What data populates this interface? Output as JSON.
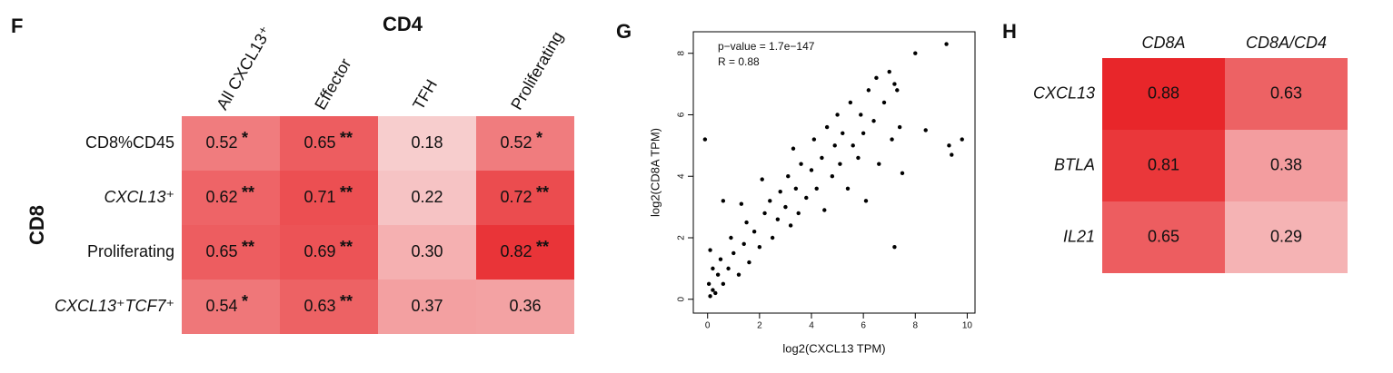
{
  "chart_data": [
    {
      "type": "heatmap",
      "panel": "F",
      "title": "CD4",
      "ylabel": "CD8",
      "columns": [
        "All CXCL13⁺",
        "Effector",
        "TFH",
        "Proliferating"
      ],
      "rows": [
        "CD8%CD45",
        "CXCL13⁺",
        "Proliferating",
        "CXCL13⁺TCF7⁺"
      ],
      "row_italic": [
        false,
        true,
        false,
        true
      ],
      "values": [
        [
          0.52,
          0.65,
          0.18,
          0.52
        ],
        [
          0.62,
          0.71,
          0.22,
          0.72
        ],
        [
          0.65,
          0.69,
          0.3,
          0.82
        ],
        [
          0.54,
          0.63,
          0.37,
          0.36
        ]
      ],
      "value_labels": [
        [
          "0.52",
          "0.65",
          "0.18",
          "0.52"
        ],
        [
          "0.62",
          "0.71",
          "0.22",
          "0.72"
        ],
        [
          "0.65",
          "0.69",
          "0.30",
          "0.82"
        ],
        [
          "0.54",
          "0.63",
          "0.37",
          "0.36"
        ]
      ],
      "stars": [
        [
          "*",
          "**",
          null,
          "*"
        ],
        [
          "**",
          "**",
          null,
          "**"
        ],
        [
          "**",
          "**",
          null,
          "**"
        ],
        [
          "*",
          "**",
          null,
          null
        ]
      ],
      "colors": [
        "#f9e0e0",
        "#e8262a"
      ],
      "color_range": [
        0.1,
        0.88
      ]
    },
    {
      "type": "scatter",
      "panel": "G",
      "xlabel": "log2(CXCL13 TPM)",
      "ylabel": "log2(CD8A TPM)",
      "annotations": [
        "p−value = 1.7e−147",
        "R = 0.88"
      ],
      "color": "#000000",
      "x": [
        0.1,
        0.2,
        0.05,
        0.3,
        0.4,
        0.2,
        0.6,
        0.5,
        0.8,
        0.1,
        1.0,
        1.2,
        0.9,
        1.4,
        1.6,
        1.5,
        1.8,
        2.0,
        2.2,
        2.5,
        2.4,
        2.7,
        2.8,
        3.0,
        3.2,
        3.1,
        3.4,
        3.5,
        3.6,
        3.8,
        4.0,
        4.1,
        4.2,
        4.4,
        4.5,
        4.6,
        4.8,
        4.9,
        5.0,
        5.1,
        5.2,
        5.4,
        5.5,
        5.6,
        5.8,
        5.9,
        6.0,
        6.1,
        6.2,
        6.4,
        6.5,
        6.6,
        6.8,
        7.0,
        7.1,
        7.2,
        7.3,
        7.4,
        7.5,
        7.2,
        8.0,
        8.4,
        9.2,
        9.3,
        9.8,
        9.4,
        -0.1,
        0.6,
        3.3,
        2.1,
        1.3
      ],
      "y": [
        0.1,
        0.3,
        0.5,
        0.2,
        0.8,
        1.0,
        0.5,
        1.3,
        1.0,
        1.6,
        1.5,
        0.8,
        2.0,
        1.8,
        1.2,
        2.5,
        2.2,
        1.7,
        2.8,
        2.0,
        3.2,
        2.6,
        3.5,
        3.0,
        2.4,
        4.0,
        3.6,
        2.8,
        4.4,
        3.3,
        4.2,
        5.2,
        3.6,
        4.6,
        2.9,
        5.6,
        4.0,
        5.0,
        6.0,
        4.4,
        5.4,
        3.6,
        6.4,
        5.0,
        4.6,
        6.0,
        5.4,
        3.2,
        6.8,
        5.8,
        7.2,
        4.4,
        6.4,
        7.4,
        5.2,
        1.7,
        6.8,
        5.6,
        4.1,
        7.0,
        8.0,
        5.5,
        8.3,
        5.0,
        5.2,
        4.7,
        5.2,
        3.2,
        4.9,
        3.9,
        3.1
      ],
      "xlim": [
        -0.55,
        10.3
      ],
      "ylim": [
        -0.45,
        8.7
      ],
      "xticks": [
        0,
        2,
        4,
        6,
        8,
        10
      ],
      "yticks": [
        0,
        2,
        4,
        6,
        8
      ]
    },
    {
      "type": "heatmap",
      "panel": "H",
      "columns": [
        "CD8A",
        "CD8A/CD4"
      ],
      "rows": [
        "CXCL13",
        "BTLA",
        "IL21"
      ],
      "row_italic": [
        true,
        true,
        true
      ],
      "values": [
        [
          0.88,
          0.63
        ],
        [
          0.81,
          0.38
        ],
        [
          0.65,
          0.29
        ]
      ],
      "value_labels": [
        [
          "0.88",
          "0.63"
        ],
        [
          "0.81",
          "0.38"
        ],
        [
          "0.65",
          "0.29"
        ]
      ],
      "colors": [
        "#f9e0e0",
        "#e8262a"
      ],
      "color_range": [
        0.1,
        0.88
      ]
    }
  ]
}
